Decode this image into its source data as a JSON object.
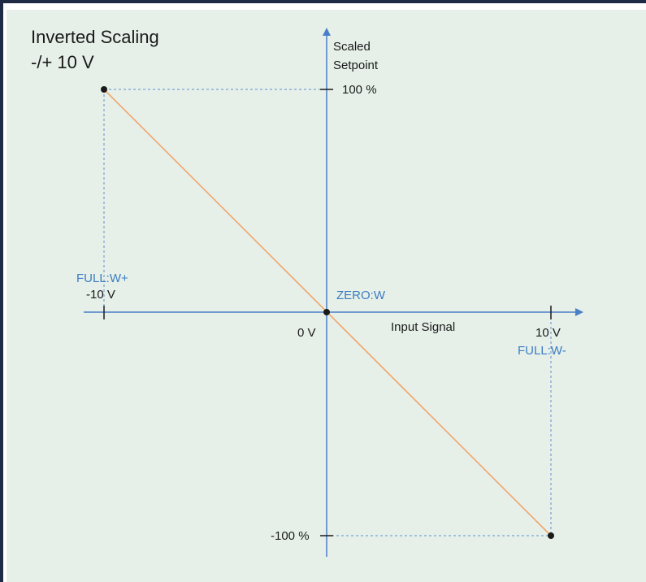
{
  "title": {
    "line1": "Inverted Scaling",
    "line2": "-/+ 10 V"
  },
  "y_axis": {
    "label_line1": "Scaled",
    "label_line2": "Setpoint",
    "top_tick": "100 %",
    "bottom_tick": "-100 %"
  },
  "x_axis": {
    "label": "Input Signal",
    "left_tick": "-10 V",
    "origin_tick": "0 V",
    "right_tick": "10 V"
  },
  "points": {
    "full_w_plus": "FULL:W+",
    "zero_w": "ZERO:W",
    "full_w_minus": "FULL:W-"
  },
  "colors": {
    "axis": "#4a7fc8",
    "line": "#f0a56b",
    "guide": "#5a8fd0",
    "label_blue": "#3d7cc0",
    "background": "#e6f0e9",
    "frame": "#1f2a44"
  }
}
